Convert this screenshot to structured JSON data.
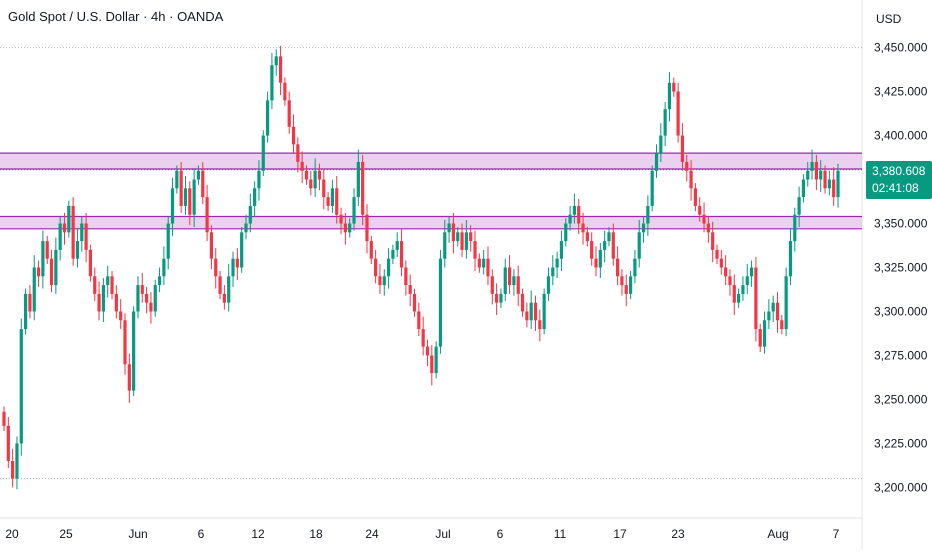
{
  "header": {
    "title": "Gold Spot / U.S. Dollar · 4h · OANDA",
    "currency": "USD"
  },
  "price_tag": {
    "price": "3,380.608",
    "countdown": "02:41:08",
    "color": "#089981"
  },
  "colors": {
    "up": "#089981",
    "down": "#f23645",
    "zone_fill": "#e1bee7",
    "zone_line": "#9c27b0",
    "grid": "#b2b5be"
  },
  "chart_data": {
    "type": "candlestick",
    "title": "Gold Spot / U.S. Dollar · 4h · OANDA",
    "ylim": [
      3190,
      3460
    ],
    "y_ticks": [
      3200,
      3225,
      3250,
      3275,
      3300,
      3325,
      3350,
      3375,
      3400,
      3425,
      3450
    ],
    "y_tick_labels": [
      "3,200.000",
      "3,225.000",
      "3,250.000",
      "3,275.000",
      "3,300.000",
      "3,325.000",
      "3,350.000",
      "3,375.000",
      "3,400.000",
      "3,425.000",
      "3,450.000"
    ],
    "x_tick_labels": [
      "20",
      "25",
      "Jun",
      "6",
      "12",
      "18",
      "24",
      "Jul",
      "6",
      "11",
      "17",
      "23",
      "Aug",
      "7"
    ],
    "zones": [
      {
        "low": 3381,
        "high": 3390
      },
      {
        "low": 3347,
        "high": 3354
      }
    ],
    "grid_dotted_levels": [
      3450,
      3205
    ],
    "last_price": 3380.608,
    "closes": [
      3235,
      3215,
      3205,
      3225,
      3290,
      3310,
      3300,
      3325,
      3320,
      3340,
      3330,
      3315,
      3335,
      3350,
      3345,
      3360,
      3330,
      3340,
      3350,
      3335,
      3320,
      3310,
      3300,
      3315,
      3320,
      3310,
      3300,
      3295,
      3270,
      3255,
      3300,
      3315,
      3310,
      3305,
      3300,
      3315,
      3320,
      3330,
      3350,
      3370,
      3380,
      3360,
      3370,
      3355,
      3375,
      3380,
      3365,
      3345,
      3330,
      3320,
      3310,
      3305,
      3320,
      3330,
      3325,
      3345,
      3350,
      3360,
      3370,
      3380,
      3400,
      3420,
      3440,
      3445,
      3430,
      3420,
      3405,
      3395,
      3385,
      3380,
      3375,
      3370,
      3380,
      3375,
      3365,
      3360,
      3370,
      3355,
      3350,
      3345,
      3350,
      3365,
      3385,
      3355,
      3340,
      3330,
      3320,
      3315,
      3320,
      3330,
      3335,
      3340,
      3325,
      3315,
      3310,
      3300,
      3290,
      3280,
      3275,
      3265,
      3280,
      3330,
      3345,
      3350,
      3340,
      3345,
      3335,
      3345,
      3340,
      3330,
      3325,
      3330,
      3320,
      3310,
      3305,
      3310,
      3325,
      3315,
      3320,
      3310,
      3300,
      3295,
      3305,
      3295,
      3290,
      3310,
      3320,
      3325,
      3330,
      3340,
      3350,
      3355,
      3360,
      3350,
      3345,
      3340,
      3330,
      3325,
      3335,
      3340,
      3345,
      3330,
      3320,
      3315,
      3310,
      3320,
      3330,
      3345,
      3350,
      3360,
      3380,
      3390,
      3400,
      3415,
      3430,
      3425,
      3400,
      3385,
      3380,
      3370,
      3360,
      3355,
      3350,
      3345,
      3335,
      3330,
      3325,
      3320,
      3315,
      3305,
      3310,
      3315,
      3320,
      3325,
      3290,
      3280,
      3295,
      3300,
      3305,
      3295,
      3290,
      3320,
      3340,
      3355,
      3365,
      3375,
      3380,
      3385,
      3375,
      3380,
      3370,
      3375,
      3365,
      3380
    ]
  }
}
